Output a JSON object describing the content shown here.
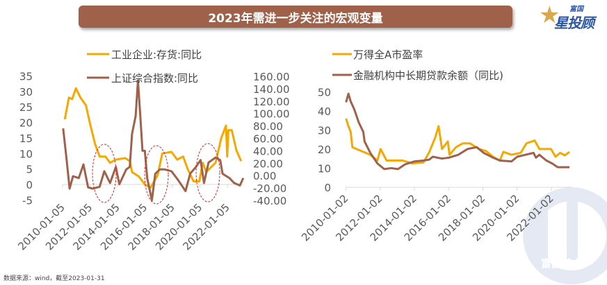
{
  "title": "2023年需进一步关注的宏观变量",
  "logo": {
    "small": "富国",
    "big": "星投顾"
  },
  "watermark": "富国基金",
  "footer": "数据来源：wind，截至2023-01-31",
  "colors": {
    "orange": "#f5a800",
    "brown": "#a0614a",
    "title_bg": "#a0614a",
    "highlight": "#e02020"
  },
  "chart_data": [
    {
      "type": "line",
      "legend": [
        "工业企业:存货:同比",
        "上证综合指数:同比"
      ],
      "x_ticks": [
        "2010-01-05",
        "2012-01-05",
        "2014-01-05",
        "2016-01-05",
        "2018-01-05",
        "2020-01-05",
        "2022-01-05"
      ],
      "y_left_ticks": [
        "35",
        "30",
        "25",
        "20",
        "15",
        "10",
        "5",
        "0",
        "-5"
      ],
      "y_right_ticks": [
        "160.00",
        "140.00",
        "120.00",
        "100.00",
        "80.00",
        "60.00",
        "40.00",
        "20.00",
        "0.00",
        "-20.00",
        "-40.00"
      ],
      "ylim_left": [
        -5,
        35
      ],
      "ylim_right": [
        -40,
        160
      ],
      "xlim": [
        2010.0,
        2023.1
      ],
      "annotations": [
        "dashed red ellipse ~2013",
        "dashed red ellipse ~2016.5",
        "dashed red ellipse ~2020.5"
      ],
      "series": [
        {
          "name": "工业企业:存货:同比",
          "axis": "left",
          "color": "orange",
          "points": [
            [
              2010.16,
              21
            ],
            [
              2010.46,
              28
            ],
            [
              2010.7,
              27.5
            ],
            [
              2010.97,
              31
            ],
            [
              2011.3,
              28
            ],
            [
              2011.7,
              25.5
            ],
            [
              2012.03,
              19
            ],
            [
              2012.37,
              13
            ],
            [
              2012.7,
              9
            ],
            [
              2013.12,
              9
            ],
            [
              2013.46,
              7
            ],
            [
              2013.88,
              8
            ],
            [
              2014.56,
              8.5
            ],
            [
              2014.9,
              7.5
            ],
            [
              2015.06,
              4
            ],
            [
              2015.57,
              2.5
            ],
            [
              2015.99,
              0
            ],
            [
              2016.41,
              -1
            ],
            [
              2016.92,
              3
            ],
            [
              2017.26,
              10
            ],
            [
              2017.93,
              10.5
            ],
            [
              2018.35,
              8
            ],
            [
              2018.78,
              9
            ],
            [
              2019.11,
              5
            ],
            [
              2019.54,
              1
            ],
            [
              2019.96,
              1
            ],
            [
              2020.2,
              7
            ],
            [
              2020.46,
              4
            ],
            [
              2021.14,
              7
            ],
            [
              2021.56,
              15
            ],
            [
              2021.9,
              19
            ],
            [
              2021.99,
              9
            ],
            [
              2022.07,
              17.5
            ],
            [
              2022.32,
              17.5
            ],
            [
              2022.66,
              11
            ],
            [
              2023.0,
              7.5
            ]
          ]
        },
        {
          "name": "上证综合指数:同比",
          "axis": "right",
          "color": "brown",
          "points": [
            [
              2010.04,
              76
            ],
            [
              2010.26,
              33
            ],
            [
              2010.51,
              -21
            ],
            [
              2010.76,
              -1
            ],
            [
              2011.18,
              -4
            ],
            [
              2011.52,
              18
            ],
            [
              2011.86,
              -19
            ],
            [
              2012.19,
              -21
            ],
            [
              2012.7,
              -18
            ],
            [
              2013.04,
              7
            ],
            [
              2013.46,
              -12
            ],
            [
              2013.88,
              14
            ],
            [
              2014.13,
              -14
            ],
            [
              2014.64,
              10
            ],
            [
              2014.89,
              14
            ],
            [
              2015.06,
              67
            ],
            [
              2015.32,
              96
            ],
            [
              2015.49,
              153
            ],
            [
              2015.66,
              96
            ],
            [
              2015.82,
              40
            ],
            [
              2015.99,
              40
            ],
            [
              2016.16,
              -4
            ],
            [
              2016.5,
              -40
            ],
            [
              2016.75,
              3
            ],
            [
              2017.09,
              10
            ],
            [
              2017.43,
              10
            ],
            [
              2017.93,
              7
            ],
            [
              2018.44,
              -8
            ],
            [
              2018.95,
              -25
            ],
            [
              2019.29,
              3
            ],
            [
              2019.71,
              14
            ],
            [
              2020.05,
              25
            ],
            [
              2020.3,
              -12
            ],
            [
              2020.63,
              21
            ],
            [
              2021.14,
              29
            ],
            [
              2021.48,
              25
            ],
            [
              2021.65,
              3
            ],
            [
              2022.15,
              -4
            ],
            [
              2022.49,
              -12
            ],
            [
              2022.91,
              -16
            ],
            [
              2023.16,
              -4
            ]
          ]
        }
      ]
    },
    {
      "type": "line",
      "legend": [
        "万得全A市盈率",
        "金融机构中长期贷款余额（同比)"
      ],
      "x_ticks": [
        "2010-01-02",
        "2012-01-02",
        "2014-01-02",
        "2016-01-02",
        "2018-01-02",
        "2020-01-02",
        "2022-01-02"
      ],
      "y_ticks": [
        "50",
        "40",
        "30",
        "20",
        "10",
        "0"
      ],
      "ylim": [
        0,
        50
      ],
      "xlim": [
        2010.0,
        2023.2
      ],
      "series": [
        {
          "name": "万得全A市盈率",
          "color": "orange",
          "points": [
            [
              2010.0,
              36
            ],
            [
              2010.14,
              32
            ],
            [
              2010.27,
              29
            ],
            [
              2010.37,
              21
            ],
            [
              2010.61,
              20
            ],
            [
              2012.02,
              20
            ],
            [
              2011.42,
              17
            ],
            [
              2011.83,
              14
            ],
            [
              2012.37,
              14
            ],
            [
              2012.91,
              14
            ],
            [
              2013.31,
              14
            ],
            [
              2013.86,
              12.5
            ],
            [
              2014.53,
              13
            ],
            [
              2014.87,
              18.5
            ],
            [
              2015.21,
              26
            ],
            [
              2015.41,
              32
            ],
            [
              2015.61,
              20
            ],
            [
              2015.95,
              24
            ],
            [
              2016.05,
              17
            ],
            [
              2016.43,
              21
            ],
            [
              2016.83,
              23
            ],
            [
              2017.24,
              23
            ],
            [
              2017.78,
              20
            ],
            [
              2018.18,
              19
            ],
            [
              2018.59,
              16
            ],
            [
              2018.99,
              14
            ],
            [
              2019.2,
              18.5
            ],
            [
              2019.67,
              17
            ],
            [
              2020.21,
              18
            ],
            [
              2020.55,
              23
            ],
            [
              2021.03,
              24.5
            ],
            [
              2021.3,
              20
            ],
            [
              2021.98,
              20
            ],
            [
              2022.25,
              16
            ],
            [
              2022.52,
              18
            ],
            [
              2022.79,
              16.7
            ],
            [
              2023.06,
              18.5
            ]
          ]
        },
        {
          "name": "金融机构中长期贷款余额（同比)",
          "color": "brown",
          "points": [
            [
              2010.0,
              44.5
            ],
            [
              2010.14,
              49
            ],
            [
              2010.27,
              45
            ],
            [
              2010.47,
              41
            ],
            [
              2010.74,
              34
            ],
            [
              2011.01,
              29
            ],
            [
              2011.08,
              24
            ],
            [
              2011.42,
              18
            ],
            [
              2011.83,
              12.5
            ],
            [
              2012.23,
              9.5
            ],
            [
              2012.64,
              10
            ],
            [
              2013.04,
              9.5
            ],
            [
              2013.45,
              12
            ],
            [
              2013.99,
              13.5
            ],
            [
              2014.53,
              14
            ],
            [
              2014.87,
              14.5
            ],
            [
              2015.07,
              16
            ],
            [
              2015.61,
              15
            ],
            [
              2016.02,
              15.5
            ],
            [
              2016.56,
              17
            ],
            [
              2017.1,
              20
            ],
            [
              2017.64,
              21
            ],
            [
              2018.04,
              18
            ],
            [
              2018.59,
              15.5
            ],
            [
              2018.99,
              14
            ],
            [
              2019.67,
              13.5
            ],
            [
              2020.01,
              16
            ],
            [
              2020.49,
              17
            ],
            [
              2020.96,
              18
            ],
            [
              2021.1,
              15.5
            ],
            [
              2021.3,
              17
            ],
            [
              2021.71,
              14
            ],
            [
              2022.04,
              12.5
            ],
            [
              2022.38,
              10.5
            ],
            [
              2023.06,
              10.5
            ]
          ]
        }
      ]
    }
  ]
}
